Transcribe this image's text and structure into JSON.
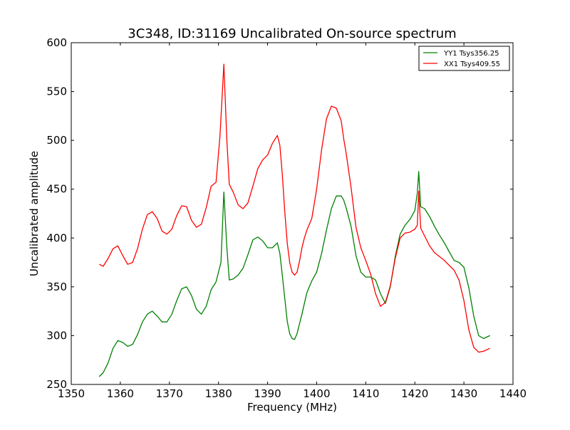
{
  "chart_data": {
    "type": "line",
    "title": "3C348, ID:31169 Uncalibrated On-source spectrum",
    "xlabel": "Frequency (MHz)",
    "ylabel": "Uncalibrated amplitude",
    "xlim": [
      1350,
      1440
    ],
    "ylim": [
      250,
      600
    ],
    "xticks": [
      1350,
      1360,
      1370,
      1380,
      1390,
      1400,
      1410,
      1420,
      1430,
      1440
    ],
    "yticks": [
      250,
      300,
      350,
      400,
      450,
      500,
      550,
      600
    ],
    "grid": false,
    "legend_position": "top-right",
    "series": [
      {
        "name": "YY1 Tsys356.25",
        "color": "#008000",
        "x": [
          1355.7,
          1356.5,
          1357.5,
          1358.5,
          1359.5,
          1360.5,
          1361.5,
          1362.5,
          1363.5,
          1364.5,
          1365.5,
          1366.5,
          1367.5,
          1368.5,
          1369.5,
          1370.5,
          1371.5,
          1372.5,
          1373.5,
          1374.5,
          1375.5,
          1376.5,
          1377.5,
          1378.5,
          1379.5,
          1380.5,
          1381.1,
          1381.7,
          1382.2,
          1383,
          1384,
          1385,
          1386,
          1387,
          1388,
          1389,
          1390,
          1391,
          1392,
          1392.5,
          1393,
          1393.5,
          1394,
          1394.5,
          1395,
          1395.5,
          1396,
          1396.5,
          1397,
          1397.5,
          1398,
          1399,
          1400,
          1401,
          1402,
          1403,
          1404,
          1405,
          1405.5,
          1406,
          1407,
          1408,
          1409,
          1410,
          1411,
          1412,
          1413,
          1414,
          1415,
          1416,
          1417,
          1418,
          1419,
          1420,
          1420.5,
          1420.8,
          1421.2,
          1422,
          1423,
          1424,
          1425,
          1426,
          1427,
          1428,
          1429,
          1430,
          1431,
          1432,
          1433,
          1434,
          1435.3
        ],
        "y": [
          258,
          262,
          272,
          287,
          295,
          293,
          289,
          291,
          301,
          314,
          322,
          325,
          320,
          314,
          314,
          322,
          336,
          348,
          350,
          341,
          327,
          322,
          330,
          347,
          355,
          375,
          447,
          390,
          357,
          358,
          362,
          369,
          383,
          398,
          401,
          397,
          390,
          390,
          395,
          384,
          362,
          338,
          315,
          302,
          297,
          296,
          302,
          312,
          322,
          333,
          344,
          356,
          365,
          384,
          408,
          430,
          443,
          443,
          439,
          431,
          412,
          382,
          365,
          360,
          360,
          357,
          343,
          333,
          350,
          381,
          404,
          413,
          419,
          428,
          446,
          468,
          432,
          430,
          422,
          412,
          403,
          395,
          386,
          377,
          375,
          370,
          349,
          320,
          300,
          297,
          300
        ]
      },
      {
        "name": "XX1 Tsys409.55",
        "color": "#ff0000",
        "x": [
          1355.7,
          1356.5,
          1357.5,
          1358.5,
          1359.5,
          1360.5,
          1361.5,
          1362.5,
          1363.5,
          1364.5,
          1365.5,
          1366.5,
          1367.5,
          1368.5,
          1369.5,
          1370.5,
          1371.5,
          1372.5,
          1373.5,
          1374.5,
          1375.5,
          1376.5,
          1377.5,
          1378.5,
          1379.5,
          1380.3,
          1381.1,
          1381.7,
          1382.2,
          1383,
          1384,
          1385,
          1386,
          1387,
          1388,
          1389,
          1390,
          1391,
          1392,
          1392.5,
          1393,
          1393.5,
          1394,
          1394.5,
          1395,
          1395.5,
          1396,
          1396.5,
          1397,
          1397.5,
          1398,
          1399,
          1400,
          1401,
          1402,
          1403,
          1404,
          1405,
          1405.5,
          1406,
          1407,
          1408,
          1409,
          1410,
          1411,
          1412,
          1413,
          1414,
          1415,
          1416,
          1417,
          1418,
          1419,
          1420,
          1420.5,
          1420.8,
          1421.2,
          1422,
          1423,
          1424,
          1425,
          1426,
          1427,
          1428,
          1429,
          1430,
          1431,
          1432,
          1433,
          1434,
          1435.3
        ],
        "y": [
          373,
          371,
          379,
          389,
          392,
          382,
          373,
          375,
          389,
          409,
          424,
          427,
          420,
          407,
          404,
          409,
          423,
          433,
          432,
          418,
          411,
          414,
          431,
          453,
          457,
          504,
          578,
          500,
          455,
          447,
          434,
          430,
          436,
          453,
          471,
          480,
          485,
          497,
          505,
          495,
          465,
          427,
          395,
          375,
          365,
          362,
          365,
          376,
          390,
          400,
          408,
          420,
          450,
          490,
          522,
          535,
          533,
          520,
          502,
          487,
          452,
          411,
          390,
          377,
          363,
          343,
          330,
          334,
          351,
          379,
          400,
          405,
          406,
          409,
          413,
          448,
          410,
          402,
          392,
          385,
          381,
          377,
          372,
          367,
          357,
          336,
          306,
          288,
          283,
          284,
          287
        ]
      }
    ]
  }
}
